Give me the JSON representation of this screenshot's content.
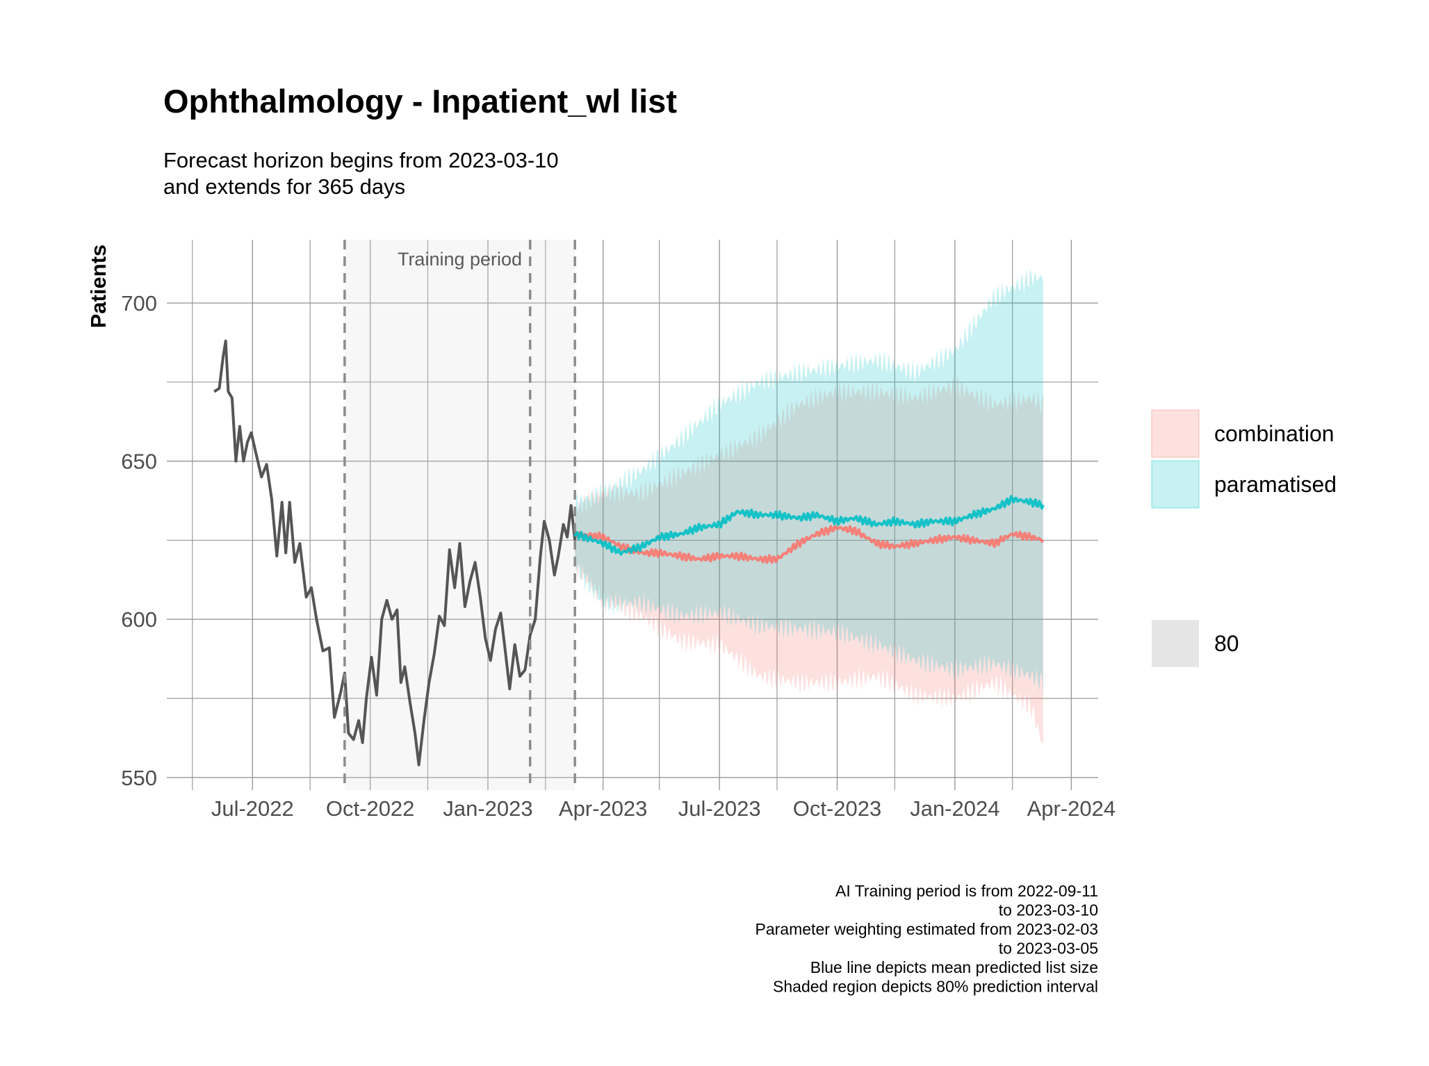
{
  "chart_data": {
    "type": "line",
    "title": "Ophthalmology - Inpatient_wl list",
    "subtitle_lines": [
      "Forecast horizon begins from 2023-03-10",
      "and extends for 365 days"
    ],
    "ylabel": "Patients",
    "xlabel": "",
    "ylim": [
      546,
      720
    ],
    "xlim": [
      "2022-04-25",
      "2024-04-22"
    ],
    "y_ticks": [
      550,
      600,
      650,
      700
    ],
    "x_ticks": [
      {
        "date": "2022-07-01",
        "label": "Jul-2022"
      },
      {
        "date": "2022-10-01",
        "label": "Oct-2022"
      },
      {
        "date": "2023-01-01",
        "label": "Jan-2023"
      },
      {
        "date": "2023-04-01",
        "label": "Apr-2023"
      },
      {
        "date": "2023-07-01",
        "label": "Jul-2023"
      },
      {
        "date": "2023-10-01",
        "label": "Oct-2023"
      },
      {
        "date": "2024-01-01",
        "label": "Jan-2024"
      },
      {
        "date": "2024-04-01",
        "label": "Apr-2024"
      }
    ],
    "x_minor_ticks": [
      "2022-05-15",
      "2022-08-15",
      "2022-11-15",
      "2023-02-15",
      "2023-05-15",
      "2023-08-15",
      "2023-11-15",
      "2024-02-15"
    ],
    "grid": true,
    "shaded_region": {
      "start": "2022-09-11",
      "end": "2023-03-10",
      "label": "Training period"
    },
    "vlines": [
      "2022-09-11",
      "2023-02-03",
      "2023-03-10"
    ],
    "historical": {
      "color": "#555555",
      "points": [
        [
          "2022-06-01",
          672
        ],
        [
          "2022-06-05",
          673
        ],
        [
          "2022-06-08",
          683
        ],
        [
          "2022-06-10",
          688
        ],
        [
          "2022-06-12",
          672
        ],
        [
          "2022-06-15",
          670
        ],
        [
          "2022-06-18",
          650
        ],
        [
          "2022-06-21",
          661
        ],
        [
          "2022-06-24",
          650
        ],
        [
          "2022-06-27",
          656
        ],
        [
          "2022-06-30",
          659
        ],
        [
          "2022-07-04",
          652
        ],
        [
          "2022-07-08",
          645
        ],
        [
          "2022-07-12",
          649
        ],
        [
          "2022-07-16",
          638
        ],
        [
          "2022-07-20",
          620
        ],
        [
          "2022-07-24",
          637
        ],
        [
          "2022-07-27",
          621
        ],
        [
          "2022-07-30",
          637
        ],
        [
          "2022-08-03",
          618
        ],
        [
          "2022-08-07",
          624
        ],
        [
          "2022-08-12",
          607
        ],
        [
          "2022-08-16",
          610
        ],
        [
          "2022-08-20",
          600
        ],
        [
          "2022-08-25",
          590
        ],
        [
          "2022-08-30",
          591
        ],
        [
          "2022-09-03",
          569
        ],
        [
          "2022-09-08",
          577
        ],
        [
          "2022-09-11",
          583
        ],
        [
          "2022-09-14",
          564
        ],
        [
          "2022-09-18",
          562
        ],
        [
          "2022-09-22",
          568
        ],
        [
          "2022-09-25",
          561
        ],
        [
          "2022-09-28",
          575
        ],
        [
          "2022-10-02",
          588
        ],
        [
          "2022-10-06",
          576
        ],
        [
          "2022-10-10",
          600
        ],
        [
          "2022-10-14",
          606
        ],
        [
          "2022-10-18",
          600
        ],
        [
          "2022-10-22",
          603
        ],
        [
          "2022-10-25",
          580
        ],
        [
          "2022-10-28",
          585
        ],
        [
          "2022-11-01",
          574
        ],
        [
          "2022-11-05",
          564
        ],
        [
          "2022-11-08",
          554
        ],
        [
          "2022-11-12",
          568
        ],
        [
          "2022-11-16",
          580
        ],
        [
          "2022-11-20",
          589
        ],
        [
          "2022-11-24",
          601
        ],
        [
          "2022-11-28",
          598
        ],
        [
          "2022-12-02",
          622
        ],
        [
          "2022-12-06",
          610
        ],
        [
          "2022-12-10",
          624
        ],
        [
          "2022-12-14",
          604
        ],
        [
          "2022-12-18",
          612
        ],
        [
          "2022-12-22",
          618
        ],
        [
          "2022-12-26",
          607
        ],
        [
          "2022-12-30",
          594
        ],
        [
          "2023-01-03",
          587
        ],
        [
          "2023-01-07",
          597
        ],
        [
          "2023-01-11",
          602
        ],
        [
          "2023-01-14",
          592
        ],
        [
          "2023-01-18",
          578
        ],
        [
          "2023-01-22",
          592
        ],
        [
          "2023-01-26",
          582
        ],
        [
          "2023-01-30",
          584
        ],
        [
          "2023-02-03",
          595
        ],
        [
          "2023-02-07",
          600
        ],
        [
          "2023-02-11",
          620
        ],
        [
          "2023-02-14",
          631
        ],
        [
          "2023-02-18",
          625
        ],
        [
          "2023-02-22",
          614
        ],
        [
          "2023-02-25",
          620
        ],
        [
          "2023-03-01",
          630
        ],
        [
          "2023-03-04",
          626
        ],
        [
          "2023-03-07",
          636
        ],
        [
          "2023-03-10",
          625
        ]
      ]
    },
    "series": [
      {
        "name": "combination",
        "color": "#F8766D",
        "fill": "#F8766D",
        "mean": [
          [
            "2023-03-10",
            627
          ],
          [
            "2023-04-01",
            626
          ],
          [
            "2023-04-15",
            623
          ],
          [
            "2023-05-01",
            621
          ],
          [
            "2023-05-15",
            621
          ],
          [
            "2023-06-01",
            620
          ],
          [
            "2023-06-15",
            619
          ],
          [
            "2023-07-01",
            620
          ],
          [
            "2023-07-15",
            620
          ],
          [
            "2023-08-01",
            619
          ],
          [
            "2023-08-15",
            619
          ],
          [
            "2023-09-01",
            624
          ],
          [
            "2023-09-15",
            627
          ],
          [
            "2023-10-01",
            629
          ],
          [
            "2023-10-15",
            628
          ],
          [
            "2023-11-01",
            624
          ],
          [
            "2023-11-15",
            623
          ],
          [
            "2023-12-01",
            624
          ],
          [
            "2023-12-15",
            625
          ],
          [
            "2024-01-01",
            626
          ],
          [
            "2024-01-15",
            625
          ],
          [
            "2024-02-01",
            624
          ],
          [
            "2024-02-15",
            627
          ],
          [
            "2024-03-01",
            626
          ],
          [
            "2024-03-10",
            625
          ]
        ],
        "lower": [
          [
            "2023-03-10",
            617
          ],
          [
            "2023-04-01",
            606
          ],
          [
            "2023-05-01",
            601
          ],
          [
            "2023-06-01",
            593
          ],
          [
            "2023-07-01",
            592
          ],
          [
            "2023-08-01",
            582
          ],
          [
            "2023-09-01",
            580
          ],
          [
            "2023-10-01",
            580
          ],
          [
            "2023-11-01",
            582
          ],
          [
            "2023-12-01",
            576
          ],
          [
            "2024-01-01",
            575
          ],
          [
            "2024-02-01",
            580
          ],
          [
            "2024-03-01",
            572
          ],
          [
            "2024-03-10",
            560
          ]
        ],
        "upper": [
          [
            "2023-03-10",
            635
          ],
          [
            "2023-04-01",
            640
          ],
          [
            "2023-05-01",
            640
          ],
          [
            "2023-06-01",
            646
          ],
          [
            "2023-07-01",
            652
          ],
          [
            "2023-08-01",
            658
          ],
          [
            "2023-09-01",
            668
          ],
          [
            "2023-10-01",
            672
          ],
          [
            "2023-11-01",
            672
          ],
          [
            "2023-12-01",
            670
          ],
          [
            "2024-01-01",
            674
          ],
          [
            "2024-02-01",
            668
          ],
          [
            "2024-03-01",
            670
          ],
          [
            "2024-03-10",
            668
          ]
        ]
      },
      {
        "name": "paramatised",
        "color": "#00BFC4",
        "fill": "#00BFC4",
        "mean": [
          [
            "2023-03-10",
            627
          ],
          [
            "2023-04-01",
            624
          ],
          [
            "2023-04-15",
            621
          ],
          [
            "2023-05-01",
            623
          ],
          [
            "2023-05-15",
            626
          ],
          [
            "2023-06-01",
            627
          ],
          [
            "2023-06-15",
            629
          ],
          [
            "2023-07-01",
            630
          ],
          [
            "2023-07-15",
            634
          ],
          [
            "2023-08-01",
            633
          ],
          [
            "2023-08-15",
            633
          ],
          [
            "2023-09-01",
            632
          ],
          [
            "2023-09-15",
            633
          ],
          [
            "2023-10-01",
            631
          ],
          [
            "2023-10-15",
            632
          ],
          [
            "2023-11-01",
            630
          ],
          [
            "2023-11-15",
            631
          ],
          [
            "2023-12-01",
            630
          ],
          [
            "2023-12-15",
            631
          ],
          [
            "2024-01-01",
            631
          ],
          [
            "2024-01-15",
            633
          ],
          [
            "2024-02-01",
            635
          ],
          [
            "2024-02-15",
            638
          ],
          [
            "2024-03-01",
            637
          ],
          [
            "2024-03-10",
            636
          ]
        ],
        "lower": [
          [
            "2023-03-10",
            617
          ],
          [
            "2023-04-01",
            605
          ],
          [
            "2023-05-01",
            605
          ],
          [
            "2023-06-01",
            601
          ],
          [
            "2023-07-01",
            602
          ],
          [
            "2023-08-01",
            598
          ],
          [
            "2023-09-01",
            597
          ],
          [
            "2023-10-01",
            596
          ],
          [
            "2023-11-01",
            592
          ],
          [
            "2023-12-01",
            587
          ],
          [
            "2024-01-01",
            584
          ],
          [
            "2024-02-01",
            586
          ],
          [
            "2024-03-01",
            582
          ],
          [
            "2024-03-10",
            580
          ]
        ],
        "upper": [
          [
            "2023-03-10",
            637
          ],
          [
            "2023-04-01",
            640
          ],
          [
            "2023-05-01",
            647
          ],
          [
            "2023-06-01",
            657
          ],
          [
            "2023-07-01",
            668
          ],
          [
            "2023-08-01",
            675
          ],
          [
            "2023-09-01",
            678
          ],
          [
            "2023-10-01",
            680
          ],
          [
            "2023-11-01",
            682
          ],
          [
            "2023-12-01",
            678
          ],
          [
            "2024-01-01",
            685
          ],
          [
            "2024-02-01",
            702
          ],
          [
            "2024-03-01",
            708
          ],
          [
            "2024-03-10",
            708
          ]
        ]
      }
    ],
    "legend": {
      "position": "right",
      "fill_entries": [
        {
          "label": "combination",
          "color": "#F8766D"
        },
        {
          "label": "paramatised",
          "color": "#00BFC4"
        }
      ],
      "level_entries": [
        {
          "label": "80",
          "color": "#BEBEBE"
        }
      ]
    },
    "caption_lines": [
      "AI Training period is from 2022-09-11",
      "to 2023-03-10",
      "Parameter weighting estimated from 2023-02-03",
      "to 2023-03-05",
      "Blue line depicts mean predicted list size",
      "Shaded region depicts 80% prediction interval"
    ]
  }
}
